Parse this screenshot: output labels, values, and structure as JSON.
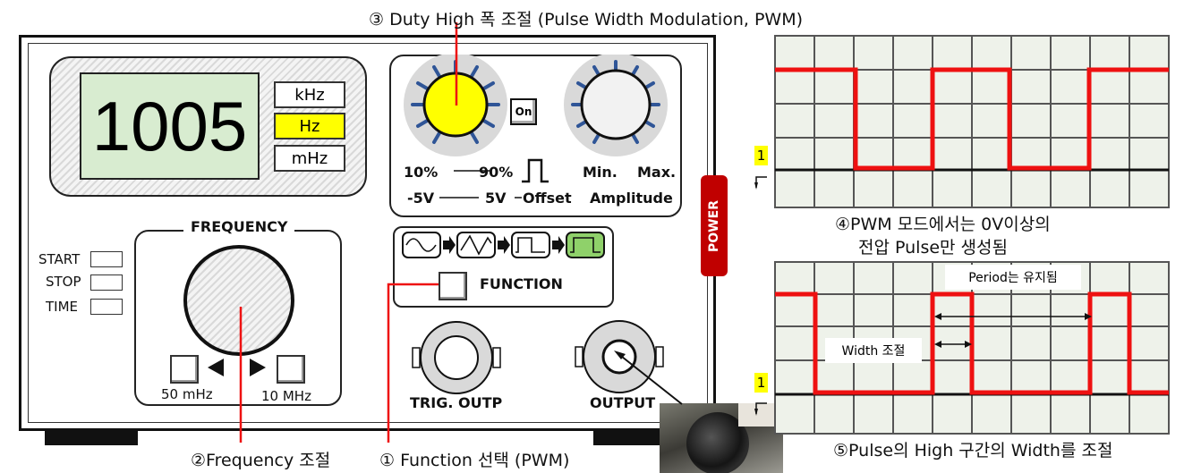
{
  "device": {
    "display_value": "1005",
    "units": [
      "kHz",
      "Hz",
      "mHz"
    ],
    "selected_unit": "Hz",
    "status_leds": [
      "START",
      "STOP",
      "TIME"
    ],
    "frequency_label": "FREQUENCY",
    "freq_min": "50 mHz",
    "freq_max": "10 MHz",
    "duty_on_label": "On",
    "duty_low": "10%",
    "duty_high": "90%",
    "offset_low": "-5V",
    "offset_high": "5V",
    "offset_label": "Offset",
    "amp_min": "Min.",
    "amp_max": "Max.",
    "amplitude_label": "Amplitude",
    "function_label": "FUNCTION",
    "function_waves": [
      "sine",
      "triangle",
      "square",
      "pwm"
    ],
    "trig_label": "TRIG. OUTP",
    "output_label": "OUTPUT",
    "power_label": "POWER"
  },
  "callouts": {
    "c1": "① Function 선택 (PWM)",
    "c2": "②Frequency 조절",
    "c3": "③  Duty High 폭 조절 (Pulse Width Modulation, PWM)",
    "c4_line1": "④PWM 모드에서는 0V이상의",
    "c4_line2": "전압 Pulse만 생성됨",
    "c5": "⑤Pulse의 High 구간의 Width를 조절"
  },
  "scope": {
    "channel_marker": "1",
    "period_label": "Period는 유지됨",
    "width_label": "Width 조절"
  },
  "colors": {
    "accent_yellow": "#ffff00",
    "pulse_red": "#ee1111",
    "power_red": "#c00000",
    "function_selected": "#8fd16a"
  }
}
